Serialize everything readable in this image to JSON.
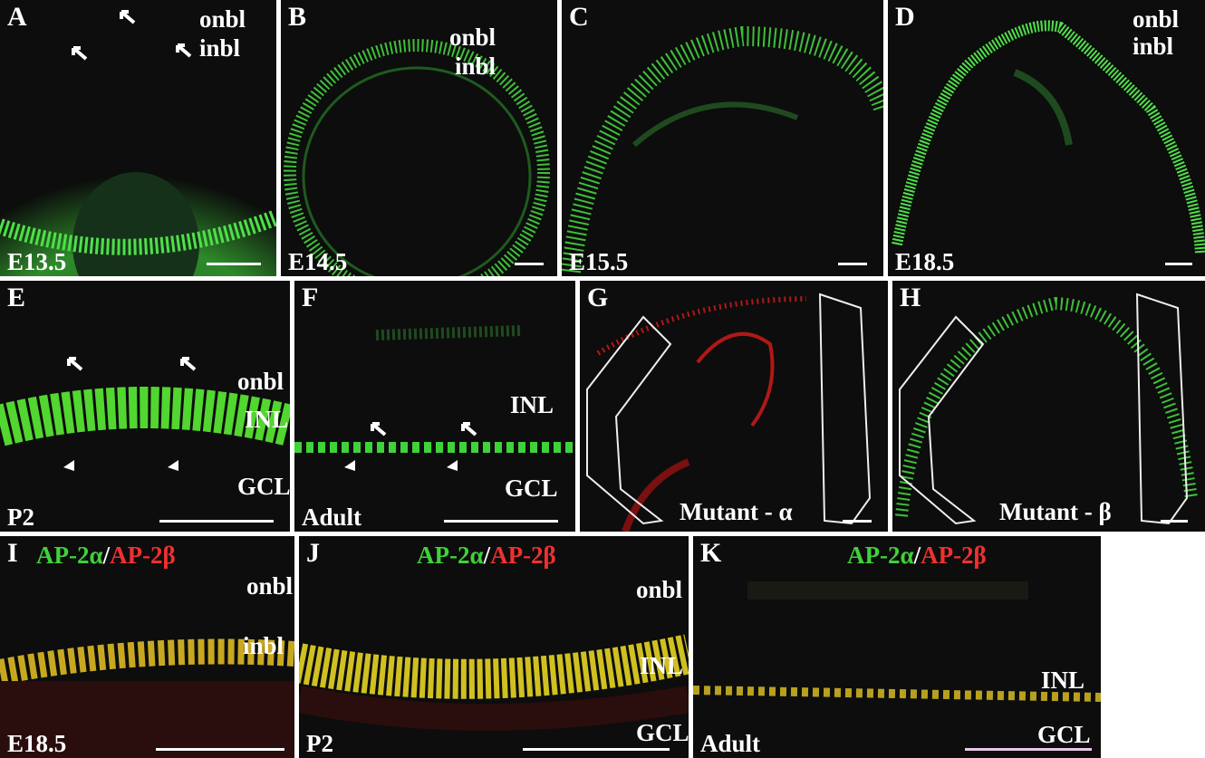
{
  "panels": [
    {
      "letter": "A",
      "labels": [
        "onbl",
        "inbl",
        "E13.5"
      ]
    },
    {
      "letter": "B",
      "labels": [
        "onbl",
        "inbl",
        "E14.5"
      ]
    },
    {
      "letter": "C",
      "labels": [
        "E15.5"
      ]
    },
    {
      "letter": "D",
      "labels": [
        "onbl",
        "inbl",
        "E18.5"
      ]
    },
    {
      "letter": "E",
      "labels": [
        "onbl",
        "INL",
        "GCL",
        "P2"
      ]
    },
    {
      "letter": "F",
      "labels": [
        "INL",
        "GCL",
        "Adult"
      ]
    },
    {
      "letter": "G",
      "labels": [
        "Mutant - α"
      ]
    },
    {
      "letter": "H",
      "labels": [
        "Mutant - β"
      ]
    },
    {
      "letter": "I",
      "title": [
        "AP-2α",
        "/",
        "AP-2β"
      ],
      "labels": [
        "onbl",
        "inbl",
        "E18.5"
      ]
    },
    {
      "letter": "J",
      "title": [
        "AP-2α",
        "/",
        "AP-2β"
      ],
      "labels": [
        "onbl",
        "INL",
        "GCL",
        "P2"
      ]
    },
    {
      "letter": "K",
      "title": [
        "AP-2α",
        "/",
        "AP-2β"
      ],
      "labels": [
        "INL",
        "GCL",
        "Adult"
      ]
    }
  ]
}
